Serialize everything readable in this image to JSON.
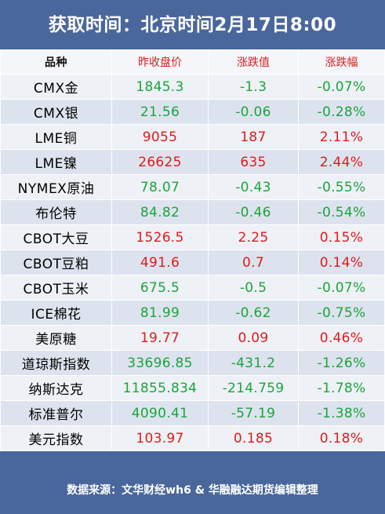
{
  "header": {
    "title": "获取时间：北京时间2月17日8:00"
  },
  "columns": {
    "name": "品种",
    "close": "昨收盘价",
    "change": "涨跌值",
    "pct": "涨跌幅"
  },
  "rows": [
    {
      "name": "CMX金",
      "close": "1845.3",
      "change": "-1.3",
      "pct": "-0.07%",
      "dir": "down"
    },
    {
      "name": "CMX银",
      "close": "21.56",
      "change": "-0.06",
      "pct": "-0.28%",
      "dir": "down"
    },
    {
      "name": "LME铜",
      "close": "9055",
      "change": "187",
      "pct": "2.11%",
      "dir": "up"
    },
    {
      "name": "LME镍",
      "close": "26625",
      "change": "635",
      "pct": "2.44%",
      "dir": "up"
    },
    {
      "name": "NYMEX原油",
      "close": "78.07",
      "change": "-0.43",
      "pct": "-0.55%",
      "dir": "down"
    },
    {
      "name": "布伦特",
      "close": "84.82",
      "change": "-0.46",
      "pct": "-0.54%",
      "dir": "down"
    },
    {
      "name": "CBOT大豆",
      "close": "1526.5",
      "change": "2.25",
      "pct": "0.15%",
      "dir": "up"
    },
    {
      "name": "CBOT豆粕",
      "close": "491.6",
      "change": "0.7",
      "pct": "0.14%",
      "dir": "up"
    },
    {
      "name": "CBOT玉米",
      "close": "675.5",
      "change": "-0.5",
      "pct": "-0.07%",
      "dir": "down"
    },
    {
      "name": "ICE棉花",
      "close": "81.99",
      "change": "-0.62",
      "pct": "-0.75%",
      "dir": "down"
    },
    {
      "name": "美原糖",
      "close": "19.77",
      "change": "0.09",
      "pct": "0.46%",
      "dir": "up"
    },
    {
      "name": "道琼斯指数",
      "close": "33696.85",
      "change": "-431.2",
      "pct": "-1.26%",
      "dir": "down"
    },
    {
      "name": "纳斯达克",
      "close": "11855.834",
      "change": "-214.759",
      "pct": "-1.78%",
      "dir": "down"
    },
    {
      "name": "标准普尔",
      "close": "4090.41",
      "change": "-57.19",
      "pct": "-1.38%",
      "dir": "down"
    },
    {
      "name": "美元指数",
      "close": "103.97",
      "change": "0.185",
      "pct": "0.18%",
      "dir": "up"
    }
  ],
  "colors": {
    "up": "#e01b1b",
    "down": "#1aa53c",
    "brand": "#4a679c"
  },
  "footer": {
    "source": "数据来源：文华财经wh6 & 华融融达期货编辑整理"
  }
}
